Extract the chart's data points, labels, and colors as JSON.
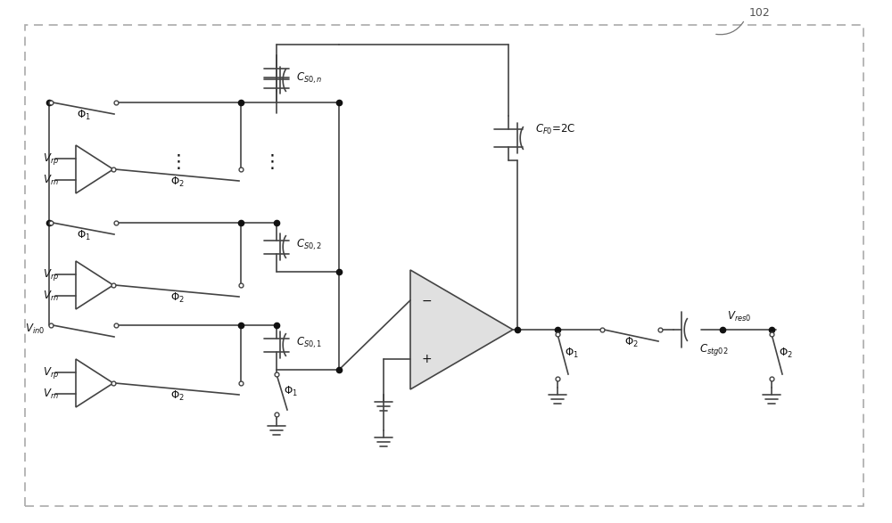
{
  "bg_color": "#ffffff",
  "line_color": "#444444",
  "dot_color": "#111111",
  "fig_width": 10.0,
  "fig_height": 5.87,
  "dpi": 100
}
